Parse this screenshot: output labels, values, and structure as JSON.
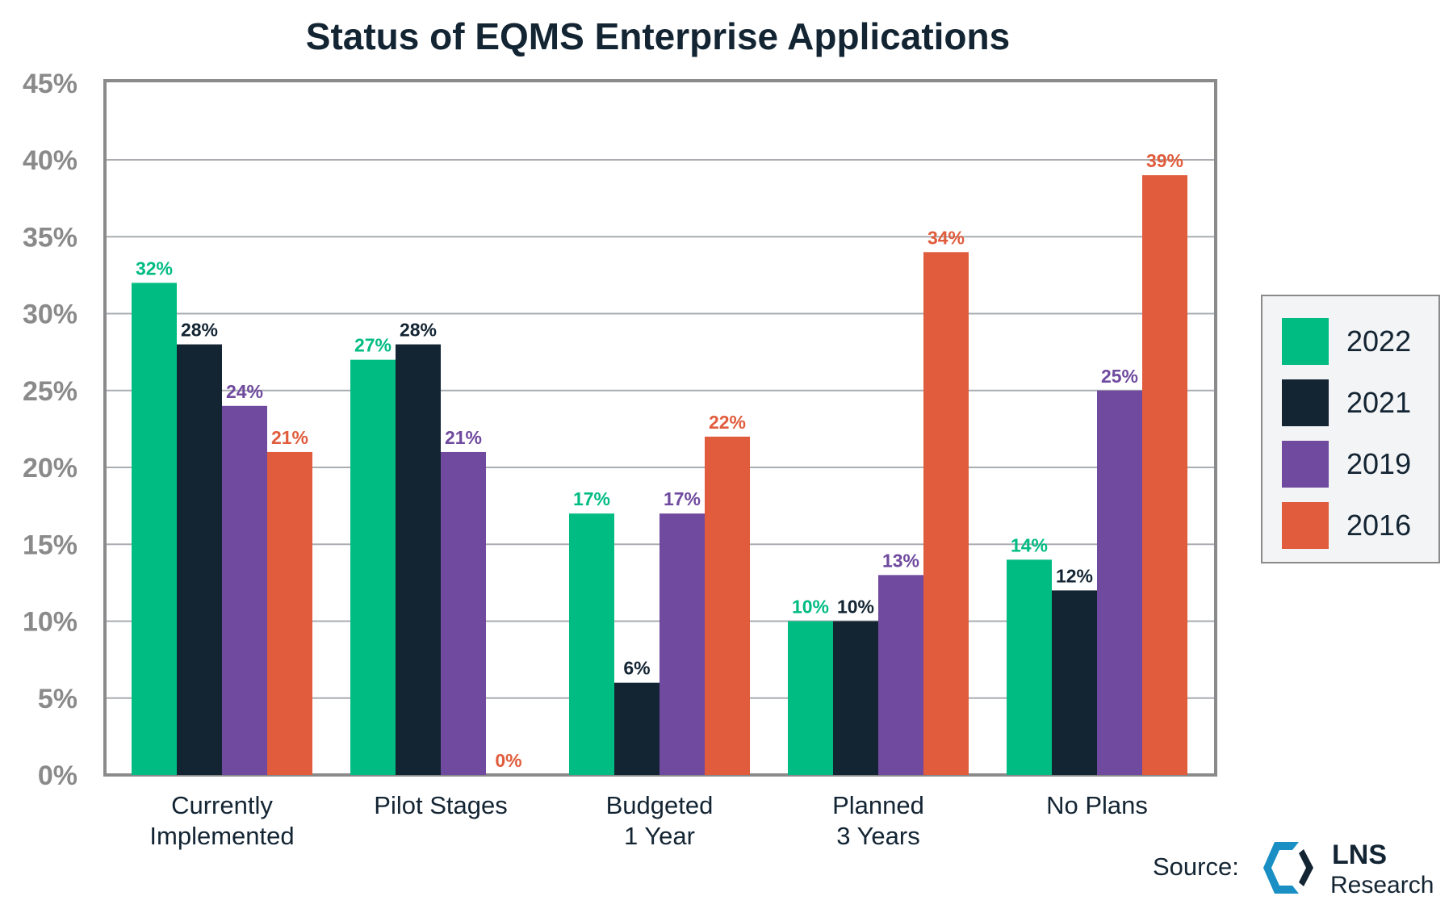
{
  "chart_data": {
    "type": "bar",
    "title": "Status of EQMS Enterprise Applications",
    "categories": [
      "Currently\nImplemented",
      "Pilot Stages",
      "Budgeted\n1 Year",
      "Planned\n3 Years",
      "No Plans"
    ],
    "series": [
      {
        "name": "2022",
        "color": "#00bc82",
        "values": [
          32,
          27,
          17,
          10,
          14
        ]
      },
      {
        "name": "2021",
        "color": "#132433",
        "values": [
          28,
          28,
          6,
          10,
          12
        ]
      },
      {
        "name": "2019",
        "color": "#6f4a9e",
        "values": [
          24,
          21,
          17,
          13,
          25
        ]
      },
      {
        "name": "2016",
        "color": "#e05c3c",
        "values": [
          21,
          0,
          22,
          34,
          39
        ]
      }
    ],
    "ylim": [
      0,
      45
    ],
    "yticks": [
      "0%",
      "5%",
      "10%",
      "15%",
      "20%",
      "25%",
      "30%",
      "35%",
      "40%",
      "45%"
    ],
    "value_suffix": "%",
    "grid": true,
    "legend": "right"
  },
  "source": {
    "label": "Source:",
    "logo_text_1": "LNS",
    "logo_text_2": "Research"
  }
}
